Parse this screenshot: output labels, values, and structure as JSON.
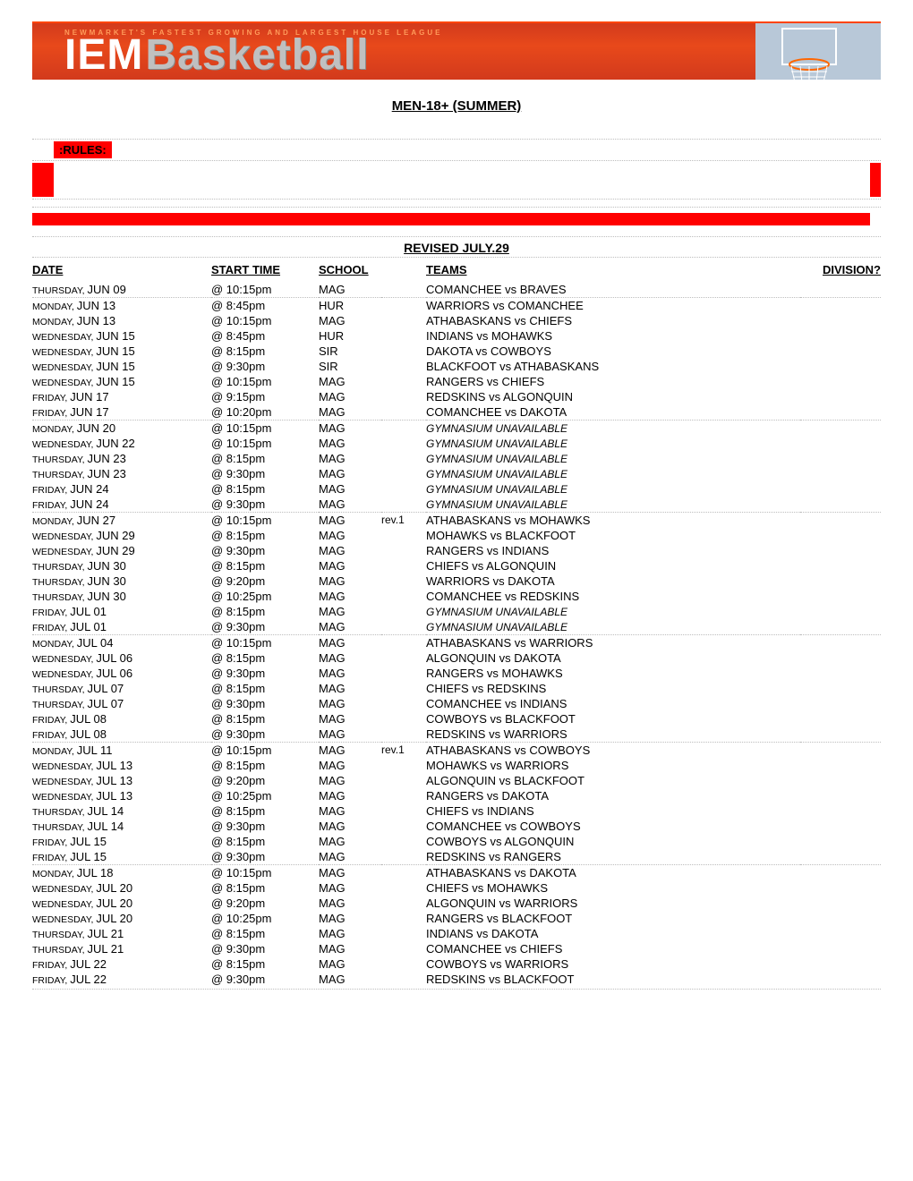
{
  "banner": {
    "tagline": "NEWMARKET'S FASTEST GROWING AND LARGEST HOUSE LEAGUE",
    "logo_iem": "IEM",
    "logo_bask": "Basketball",
    "bg_gradient_top": "#d23a1c",
    "bg_gradient_mid": "#e8491b"
  },
  "title": "MEN-18+ (SUMMER)",
  "rules_label": ":RULES:",
  "revised": "REVISED JULY.29",
  "headers": {
    "date": "DATE",
    "time": "START TIME",
    "school": "SCHOOL",
    "teams": "TEAMS",
    "division": "DIVISION?"
  },
  "groups": [
    [
      {
        "dow": "THURSDAY",
        "md": "JUN 09",
        "time": "@ 10:15pm",
        "school": "MAG",
        "rev": "",
        "teams": "COMANCHEE vs BRAVES"
      }
    ],
    [
      {
        "dow": "MONDAY",
        "md": "JUN 13",
        "time": "@ 8:45pm",
        "school": "HUR",
        "rev": "",
        "teams": "WARRIORS vs COMANCHEE"
      },
      {
        "dow": "MONDAY",
        "md": "JUN 13",
        "time": "@ 10:15pm",
        "school": "MAG",
        "rev": "",
        "teams": "ATHABASKANS vs CHIEFS"
      },
      {
        "dow": "WEDNESDAY",
        "md": "JUN 15",
        "time": "@ 8:45pm",
        "school": "HUR",
        "rev": "",
        "teams": "INDIANS vs MOHAWKS"
      },
      {
        "dow": "WEDNESDAY",
        "md": "JUN 15",
        "time": "@ 8:15pm",
        "school": "SIR",
        "rev": "",
        "teams": "DAKOTA vs COWBOYS"
      },
      {
        "dow": "WEDNESDAY",
        "md": "JUN 15",
        "time": "@ 9:30pm",
        "school": "SIR",
        "rev": "",
        "teams": "BLACKFOOT vs ATHABASKANS"
      },
      {
        "dow": "WEDNESDAY",
        "md": "JUN 15",
        "time": "@ 10:15pm",
        "school": "MAG",
        "rev": "",
        "teams": "RANGERS vs CHIEFS"
      },
      {
        "dow": "FRIDAY",
        "md": "JUN 17",
        "time": "@ 9:15pm",
        "school": "MAG",
        "rev": "",
        "teams": "REDSKINS vs ALGONQUIN"
      },
      {
        "dow": "FRIDAY",
        "md": "JUN 17",
        "time": "@ 10:20pm",
        "school": "MAG",
        "rev": "",
        "teams": "COMANCHEE vs DAKOTA"
      }
    ],
    [
      {
        "dow": "MONDAY",
        "md": "JUN 20",
        "time": "@ 10:15pm",
        "school": "MAG",
        "rev": "",
        "teams": "GYMNASIUM UNAVAILABLE",
        "unavail": true
      },
      {
        "dow": "WEDNESDAY",
        "md": "JUN 22",
        "time": "@ 10:15pm",
        "school": "MAG",
        "rev": "",
        "teams": "GYMNASIUM UNAVAILABLE",
        "unavail": true
      },
      {
        "dow": "THURSDAY",
        "md": "JUN 23",
        "time": "@ 8:15pm",
        "school": "MAG",
        "rev": "",
        "teams": "GYMNASIUM UNAVAILABLE",
        "unavail": true
      },
      {
        "dow": "THURSDAY",
        "md": "JUN 23",
        "time": "@ 9:30pm",
        "school": "MAG",
        "rev": "",
        "teams": "GYMNASIUM UNAVAILABLE",
        "unavail": true
      },
      {
        "dow": "FRIDAY",
        "md": "JUN 24",
        "time": "@ 8:15pm",
        "school": "MAG",
        "rev": "",
        "teams": "GYMNASIUM UNAVAILABLE",
        "unavail": true
      },
      {
        "dow": "FRIDAY",
        "md": "JUN 24",
        "time": "@ 9:30pm",
        "school": "MAG",
        "rev": "",
        "teams": "GYMNASIUM UNAVAILABLE",
        "unavail": true
      }
    ],
    [
      {
        "dow": "MONDAY",
        "md": "JUN 27",
        "time": "@ 10:15pm",
        "school": "MAG",
        "rev": "rev.1",
        "teams": "ATHABASKANS vs MOHAWKS"
      },
      {
        "dow": "WEDNESDAY",
        "md": "JUN 29",
        "time": "@ 8:15pm",
        "school": "MAG",
        "rev": "",
        "teams": "MOHAWKS vs BLACKFOOT"
      },
      {
        "dow": "WEDNESDAY",
        "md": "JUN 29",
        "time": "@ 9:30pm",
        "school": "MAG",
        "rev": "",
        "teams": "RANGERS vs INDIANS"
      },
      {
        "dow": "THURSDAY",
        "md": "JUN 30",
        "time": "@ 8:15pm",
        "school": "MAG",
        "rev": "",
        "teams": "CHIEFS vs ALGONQUIN"
      },
      {
        "dow": "THURSDAY",
        "md": "JUN 30",
        "time": "@ 9:20pm",
        "school": "MAG",
        "rev": "",
        "teams": "WARRIORS vs DAKOTA"
      },
      {
        "dow": "THURSDAY",
        "md": "JUN 30",
        "time": "@ 10:25pm",
        "school": "MAG",
        "rev": "",
        "teams": "COMANCHEE vs REDSKINS"
      },
      {
        "dow": "FRIDAY",
        "md": "JUL 01",
        "time": "@ 8:15pm",
        "school": "MAG",
        "rev": "",
        "teams": "GYMNASIUM UNAVAILABLE",
        "unavail": true
      },
      {
        "dow": "FRIDAY",
        "md": "JUL 01",
        "time": "@ 9:30pm",
        "school": "MAG",
        "rev": "",
        "teams": "GYMNASIUM UNAVAILABLE",
        "unavail": true
      }
    ],
    [
      {
        "dow": "MONDAY",
        "md": "JUL 04",
        "time": "@ 10:15pm",
        "school": "MAG",
        "rev": "",
        "teams": "ATHABASKANS vs WARRIORS"
      },
      {
        "dow": "WEDNESDAY",
        "md": "JUL 06",
        "time": "@ 8:15pm",
        "school": "MAG",
        "rev": "",
        "teams": "ALGONQUIN vs DAKOTA"
      },
      {
        "dow": "WEDNESDAY",
        "md": "JUL 06",
        "time": "@ 9:30pm",
        "school": "MAG",
        "rev": "",
        "teams": "RANGERS vs MOHAWKS"
      },
      {
        "dow": "THURSDAY",
        "md": "JUL 07",
        "time": "@ 8:15pm",
        "school": "MAG",
        "rev": "",
        "teams": "CHIEFS vs REDSKINS"
      },
      {
        "dow": "THURSDAY",
        "md": "JUL 07",
        "time": "@ 9:30pm",
        "school": "MAG",
        "rev": "",
        "teams": "COMANCHEE vs INDIANS"
      },
      {
        "dow": "FRIDAY",
        "md": "JUL 08",
        "time": "@ 8:15pm",
        "school": "MAG",
        "rev": "",
        "teams": "COWBOYS vs BLACKFOOT"
      },
      {
        "dow": "FRIDAY",
        "md": "JUL 08",
        "time": "@ 9:30pm",
        "school": "MAG",
        "rev": "",
        "teams": "REDSKINS vs WARRIORS"
      }
    ],
    [
      {
        "dow": "MONDAY",
        "md": "JUL 11",
        "time": "@ 10:15pm",
        "school": "MAG",
        "rev": "rev.1",
        "teams": "ATHABASKANS vs COWBOYS"
      },
      {
        "dow": "WEDNESDAY",
        "md": "JUL 13",
        "time": "@ 8:15pm",
        "school": "MAG",
        "rev": "",
        "teams": "MOHAWKS vs WARRIORS"
      },
      {
        "dow": "WEDNESDAY",
        "md": "JUL 13",
        "time": "@ 9:20pm",
        "school": "MAG",
        "rev": "",
        "teams": "ALGONQUIN vs BLACKFOOT"
      },
      {
        "dow": "WEDNESDAY",
        "md": "JUL 13",
        "time": "@ 10:25pm",
        "school": "MAG",
        "rev": "",
        "teams": "RANGERS vs DAKOTA"
      },
      {
        "dow": "THURSDAY",
        "md": "JUL 14",
        "time": "@ 8:15pm",
        "school": "MAG",
        "rev": "",
        "teams": "CHIEFS vs INDIANS"
      },
      {
        "dow": "THURSDAY",
        "md": "JUL 14",
        "time": "@ 9:30pm",
        "school": "MAG",
        "rev": "",
        "teams": "COMANCHEE vs COWBOYS"
      },
      {
        "dow": "FRIDAY",
        "md": "JUL 15",
        "time": "@ 8:15pm",
        "school": "MAG",
        "rev": "",
        "teams": "COWBOYS vs ALGONQUIN"
      },
      {
        "dow": "FRIDAY",
        "md": "JUL 15",
        "time": "@ 9:30pm",
        "school": "MAG",
        "rev": "",
        "teams": "REDSKINS vs RANGERS"
      }
    ],
    [
      {
        "dow": "MONDAY",
        "md": "JUL 18",
        "time": "@ 10:15pm",
        "school": "MAG",
        "rev": "",
        "teams": "ATHABASKANS vs DAKOTA"
      },
      {
        "dow": "WEDNESDAY",
        "md": "JUL 20",
        "time": "@ 8:15pm",
        "school": "MAG",
        "rev": "",
        "teams": "CHIEFS vs MOHAWKS"
      },
      {
        "dow": "WEDNESDAY",
        "md": "JUL 20",
        "time": "@ 9:20pm",
        "school": "MAG",
        "rev": "",
        "teams": "ALGONQUIN vs WARRIORS"
      },
      {
        "dow": "WEDNESDAY",
        "md": "JUL 20",
        "time": "@ 10:25pm",
        "school": "MAG",
        "rev": "",
        "teams": "RANGERS vs BLACKFOOT"
      },
      {
        "dow": "THURSDAY",
        "md": "JUL 21",
        "time": "@ 8:15pm",
        "school": "MAG",
        "rev": "",
        "teams": "INDIANS vs DAKOTA"
      },
      {
        "dow": "THURSDAY",
        "md": "JUL 21",
        "time": "@ 9:30pm",
        "school": "MAG",
        "rev": "",
        "teams": "COMANCHEE vs CHIEFS"
      },
      {
        "dow": "FRIDAY",
        "md": "JUL 22",
        "time": "@ 8:15pm",
        "school": "MAG",
        "rev": "",
        "teams": "COWBOYS vs WARRIORS"
      },
      {
        "dow": "FRIDAY",
        "md": "JUL 22",
        "time": "@ 9:30pm",
        "school": "MAG",
        "rev": "",
        "teams": "REDSKINS vs BLACKFOOT"
      }
    ]
  ]
}
